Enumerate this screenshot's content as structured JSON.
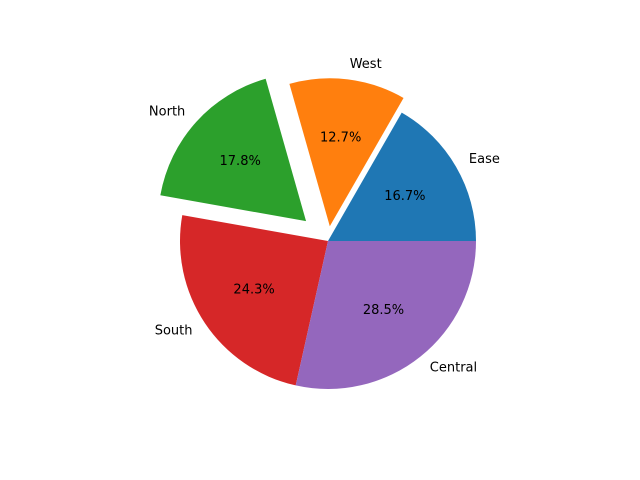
{
  "chart_data": {
    "type": "pie",
    "categories": [
      "Ease",
      "West",
      "North",
      "South",
      "Central"
    ],
    "values": [
      16.7,
      12.7,
      17.8,
      24.3,
      28.5
    ],
    "value_labels": [
      "16.7%",
      "12.7%",
      "17.8%",
      "24.3%",
      "28.5%"
    ],
    "colors": [
      "#1f77b4",
      "#ff7f0e",
      "#2ca02c",
      "#d62728",
      "#9467bd"
    ],
    "explode": [
      0,
      0.1,
      0.2,
      0,
      0
    ]
  }
}
